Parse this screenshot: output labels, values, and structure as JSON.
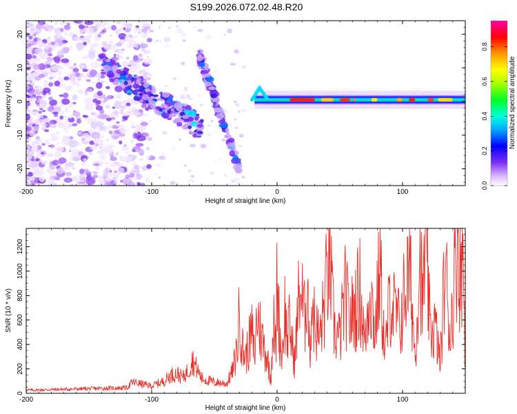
{
  "figure": {
    "title": "S199.2026.072.02.48.R20"
  },
  "chart_data": [
    {
      "type": "heatmap",
      "xlabel": "Height of straight line (km)",
      "ylabel": "Frequency (Hz)",
      "xlim": [
        -200,
        150
      ],
      "ylim": [
        -25,
        24
      ],
      "xticks": [
        -200,
        -100,
        0,
        100
      ],
      "yticks": [
        -20,
        -10,
        0,
        10,
        20
      ],
      "colorbar": {
        "label": "Normalized spectral amplitude",
        "range": [
          0,
          0.95
        ],
        "ticks": [
          0.0,
          0.2,
          0.4,
          0.6,
          0.8
        ]
      },
      "features": [
        {
          "name": "main-echo-trace",
          "x_range": [
            -18,
            150
          ],
          "freq": 0.5,
          "amplitude": 0.7
        },
        {
          "name": "descending-streak-left",
          "x_start": -140,
          "x_end": -60,
          "freq_start": 11,
          "freq_end": -8,
          "amplitude": 0.3
        },
        {
          "name": "descending-streak-right",
          "x_start": -62,
          "x_end": -30,
          "freq_start": 14,
          "freq_end": -20,
          "amplitude": 0.25
        },
        {
          "name": "background-noise",
          "x_range": [
            -200,
            -120
          ],
          "amplitude": 0.05
        }
      ]
    },
    {
      "type": "line",
      "xlabel": "Height of straight line (km)",
      "ylabel": "SNR (10 * v/v)",
      "xlim": [
        -200,
        150
      ],
      "ylim": [
        0,
        1350
      ],
      "xticks": [
        -200,
        -100,
        0,
        100
      ],
      "yticks": [
        0,
        200,
        400,
        600,
        800,
        1000,
        1200
      ],
      "color": "#e8312a",
      "series": [
        {
          "name": "SNR",
          "x": [
            -200,
            -180,
            -160,
            -140,
            -120,
            -115,
            -100,
            -90,
            -85,
            -80,
            -75,
            -70,
            -68,
            -60,
            -50,
            -40,
            -35,
            -33,
            -31,
            -30,
            -28,
            -25,
            -20,
            -18,
            -16,
            -12,
            -8,
            -5,
            -3,
            -1,
            0,
            2,
            4,
            6,
            8,
            10,
            14,
            18,
            22,
            24,
            26,
            28,
            30,
            34,
            38,
            42,
            44,
            46,
            50,
            54,
            58,
            62,
            66,
            70,
            74,
            78,
            82,
            86,
            90,
            94,
            98,
            102,
            106,
            110,
            114,
            116,
            118,
            122,
            126,
            130,
            134,
            138,
            142,
            144,
            146,
            148,
            150
          ],
          "y": [
            25,
            30,
            35,
            40,
            45,
            90,
            60,
            100,
            150,
            160,
            130,
            200,
            280,
            120,
            90,
            80,
            200,
            300,
            450,
            760,
            380,
            300,
            500,
            300,
            650,
            450,
            300,
            120,
            600,
            350,
            980,
            500,
            300,
            700,
            450,
            550,
            250,
            900,
            600,
            1000,
            300,
            800,
            550,
            450,
            750,
            1180,
            700,
            500,
            450,
            800,
            600,
            700,
            850,
            400,
            900,
            500,
            1050,
            300,
            800,
            650,
            550,
            850,
            1000,
            300,
            1220,
            650,
            1300,
            500,
            550,
            250,
            1050,
            450,
            1100,
            1350,
            950,
            1250,
            300
          ]
        }
      ]
    }
  ]
}
